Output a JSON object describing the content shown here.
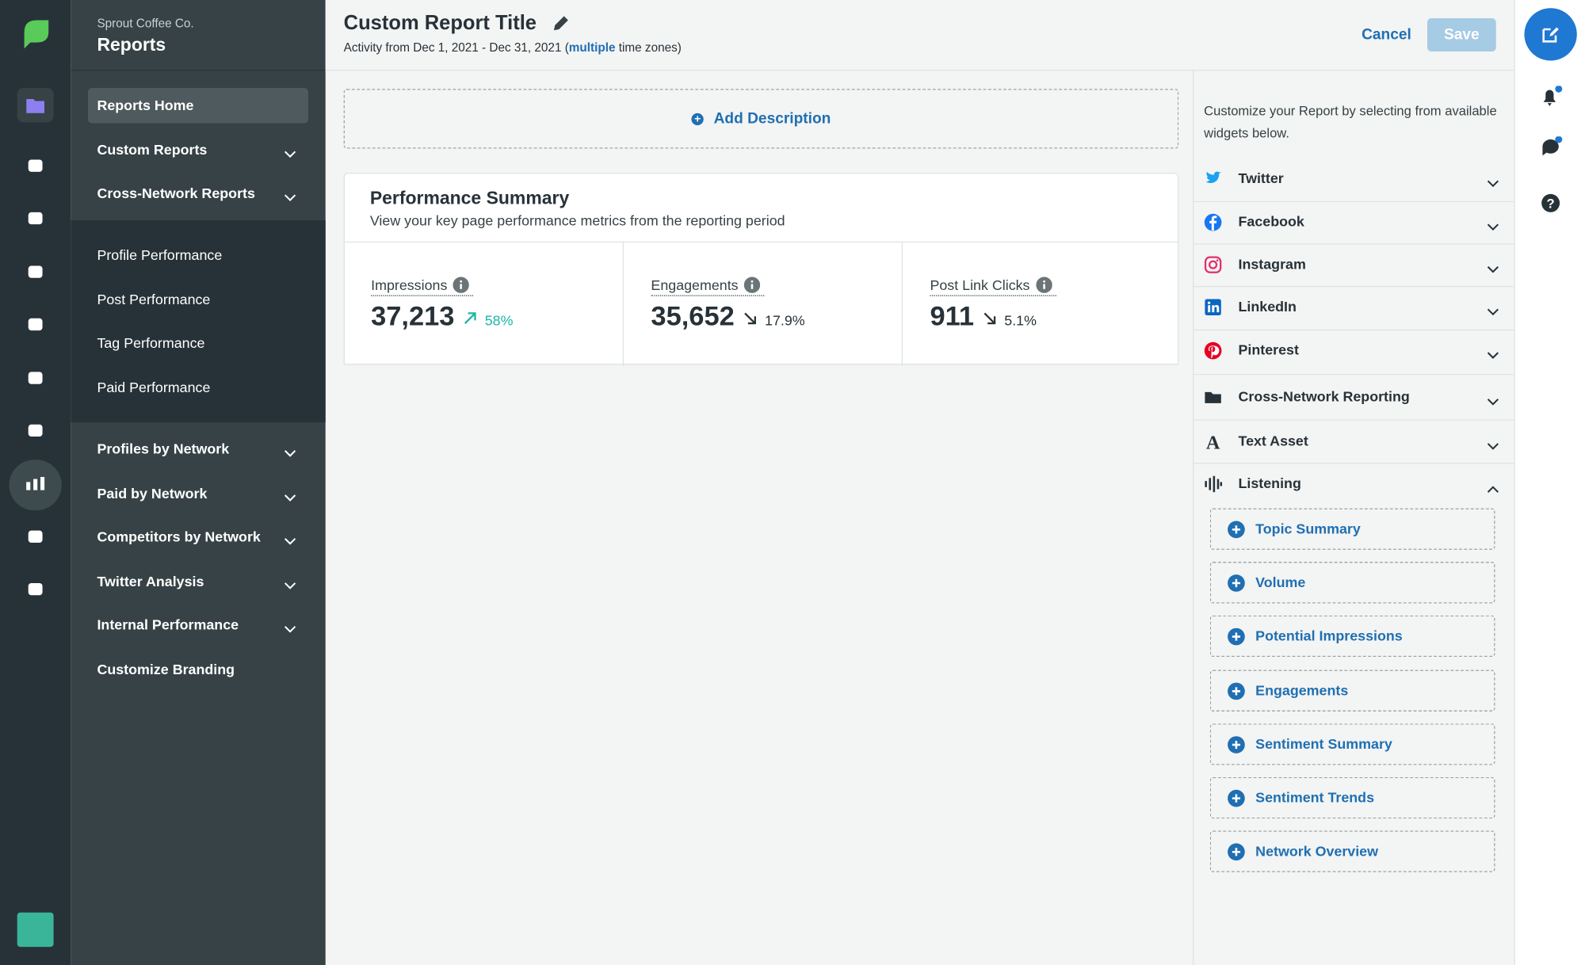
{
  "sidebar": {
    "org": "Sprout Coffee Co.",
    "section": "Reports",
    "nav_top": [
      {
        "label": "Reports Home",
        "active": true
      },
      {
        "label": "Custom Reports",
        "chevron": true
      },
      {
        "label": "Cross-Network Reports",
        "chevron": true
      }
    ],
    "sub_items": [
      "Profile Performance",
      "Post Performance",
      "Tag Performance",
      "Paid Performance"
    ],
    "nav_bottom": [
      {
        "label": "Profiles by Network",
        "chevron": true
      },
      {
        "label": "Paid by Network",
        "chevron": true
      },
      {
        "label": "Competitors by Network",
        "chevron": true
      },
      {
        "label": "Twitter Analysis",
        "chevron": true
      },
      {
        "label": "Internal Performance",
        "chevron": true
      },
      {
        "label": "Customize Branding",
        "chevron": false
      }
    ]
  },
  "header": {
    "title": "Custom Report Title",
    "activity_prefix": "Activity from Dec 1, 2021 - Dec 31, 2021 (",
    "activity_link": "multiple",
    "activity_suffix": " time zones)",
    "cancel": "Cancel",
    "save": "Save"
  },
  "add_description": "Add Description",
  "summary": {
    "title": "Performance Summary",
    "subtitle": "View your key page performance metrics from the reporting period",
    "metrics": [
      {
        "label": "Impressions",
        "value": "37,213",
        "change": "58%",
        "direction": "up"
      },
      {
        "label": "Engagements",
        "value": "35,652",
        "change": "17.9%",
        "direction": "down"
      },
      {
        "label": "Post Link Clicks",
        "value": "911",
        "change": "5.1%",
        "direction": "down"
      }
    ]
  },
  "widgets": {
    "intro": "Customize your Report by selecting from available widgets below.",
    "groups": [
      {
        "label": "Twitter",
        "icon": "twitter"
      },
      {
        "label": "Facebook",
        "icon": "facebook"
      },
      {
        "label": "Instagram",
        "icon": "instagram"
      },
      {
        "label": "LinkedIn",
        "icon": "linkedin"
      },
      {
        "label": "Pinterest",
        "icon": "pinterest"
      },
      {
        "label": "Cross-Network Reporting",
        "icon": "folder"
      },
      {
        "label": "Text Asset",
        "icon": "text"
      },
      {
        "label": "Listening",
        "icon": "listening",
        "expanded": true
      }
    ],
    "listening_items": [
      "Topic Summary",
      "Volume",
      "Potential Impressions",
      "Engagements",
      "Sentiment Summary",
      "Sentiment Trends",
      "Network Overview"
    ]
  }
}
